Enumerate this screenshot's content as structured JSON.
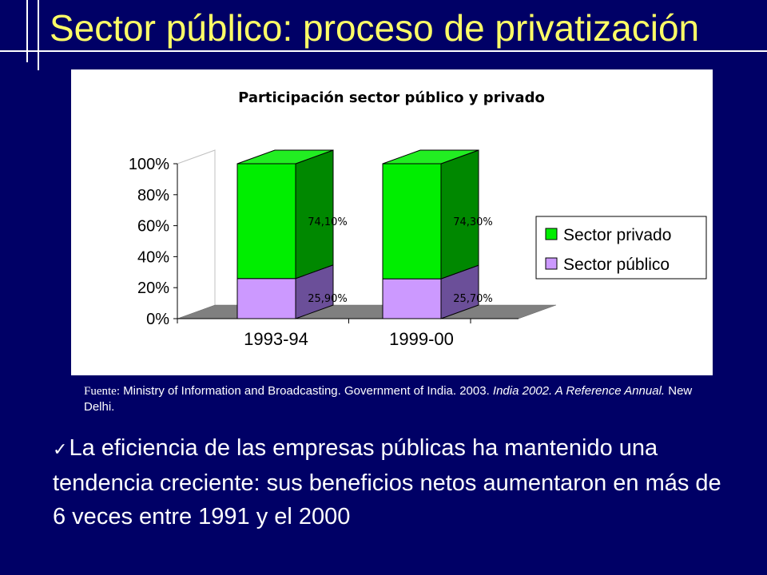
{
  "slide": {
    "title": "Sector público: proceso de privatización",
    "source_label": "Fuente:",
    "source_part1": " Ministry of Information and Broadcasting. Government of India. 2003. ",
    "source_italic": "India 2002. A Reference Annual.",
    "source_part2": " New Delhi.",
    "bullet_check": "✓",
    "bullet_text": "La eficiencia de las empresas públicas ha mantenido una tendencia creciente: sus beneficios netos aumentaron en más de 6 veces entre 1991 y el 2000",
    "colors": {
      "background": "#000066",
      "title": "#ffff66",
      "text": "#ffffff"
    }
  },
  "chart_data": {
    "type": "bar",
    "stacked": true,
    "three_d": true,
    "title": "Participación sector público y privado",
    "categories": [
      "1993-94",
      "1999-00"
    ],
    "series": [
      {
        "name": "Sector público",
        "values": [
          25.9,
          25.7
        ],
        "labels": [
          "25,90%",
          "25,70%"
        ],
        "color": "#cc99ff",
        "side_color": "#6b4f99",
        "top_color": "#dcc0ff"
      },
      {
        "name": "Sector privado",
        "values": [
          74.1,
          74.3
        ],
        "labels": [
          "74,10%",
          "74,30%"
        ],
        "color": "#00ee00",
        "side_color": "#008800",
        "top_color": "#22ee22"
      }
    ],
    "y_ticks": [
      "0%",
      "20%",
      "40%",
      "60%",
      "80%",
      "100%"
    ],
    "ylim": [
      0,
      100
    ],
    "xlabel": "",
    "ylabel": "",
    "grid": false,
    "legend_position": "right",
    "legend_order": [
      "Sector privado",
      "Sector público"
    ],
    "floor_color": "#808080"
  }
}
